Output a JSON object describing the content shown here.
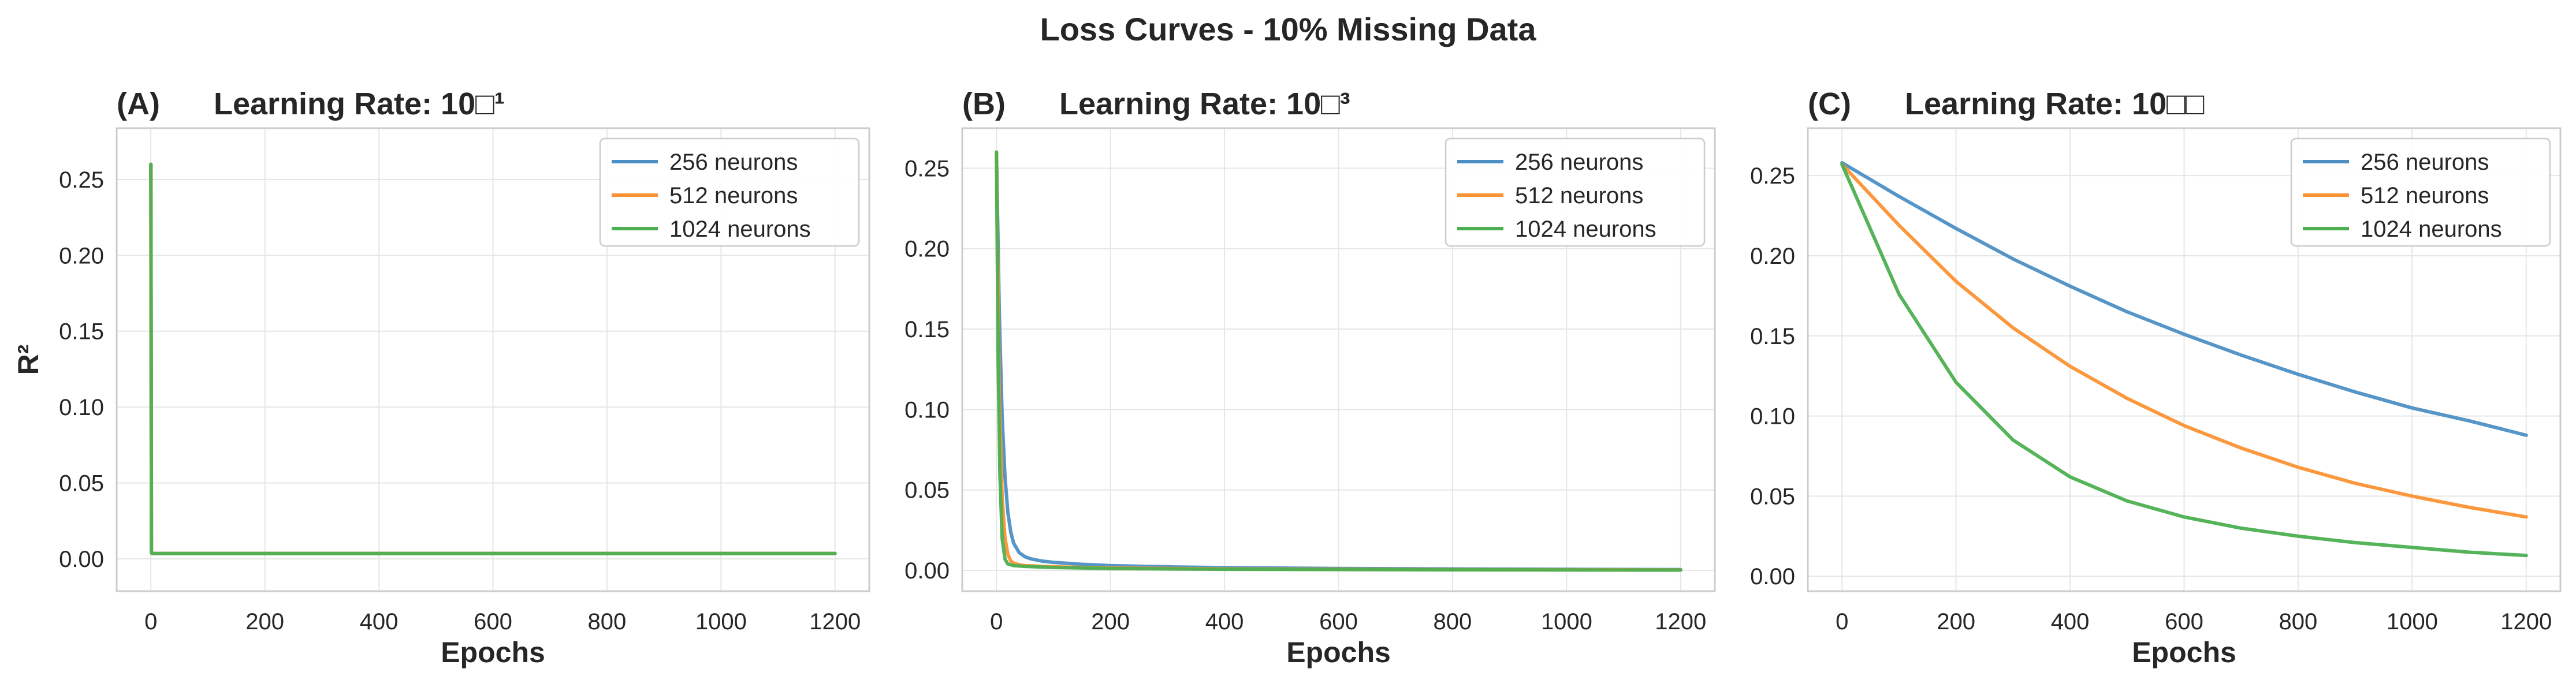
{
  "figure": {
    "title": "Loss Curves - 10% Missing Data"
  },
  "colors": {
    "series": [
      "#4c8fc4",
      "#fb9233",
      "#4caf50"
    ],
    "axes_edge": "#cccccc",
    "grid": "#e6e6e6",
    "text": "#262626"
  },
  "chart_data": [
    {
      "type": "line",
      "panel_label": "(A)",
      "title": "Learning Rate: 10□¹",
      "xlabel": "Epochs",
      "ylabel": "R²",
      "xlim": [
        -60,
        1260
      ],
      "ylim": [
        -0.0213,
        0.2838
      ],
      "xticks": [
        0,
        200,
        400,
        600,
        800,
        1000,
        1200
      ],
      "yticks": [
        0.0,
        0.05,
        0.1,
        0.15,
        0.2,
        0.25
      ],
      "ytick_labels": [
        "0.00",
        "0.05",
        "0.10",
        "0.15",
        "0.20",
        "0.25"
      ],
      "grid": true,
      "legend_loc": "upper right",
      "series": [
        {
          "name": "256 neurons",
          "x": [
            0,
            1,
            2,
            50,
            200,
            600,
            1200
          ],
          "y": [
            0.26,
            0.004,
            0.0035,
            0.0035,
            0.0035,
            0.0035,
            0.0035
          ]
        },
        {
          "name": "512 neurons",
          "x": [
            0,
            1,
            2,
            50,
            200,
            600,
            1200
          ],
          "y": [
            0.26,
            0.004,
            0.0035,
            0.0035,
            0.0035,
            0.0035,
            0.0035
          ]
        },
        {
          "name": "1024 neurons",
          "x": [
            0,
            1,
            2,
            50,
            200,
            600,
            1200
          ],
          "y": [
            0.26,
            0.004,
            0.0035,
            0.0035,
            0.0035,
            0.0035,
            0.0035
          ]
        }
      ]
    },
    {
      "type": "line",
      "panel_label": "(B)",
      "title": "Learning Rate: 10□³",
      "xlabel": "Epochs",
      "ylabel": "",
      "xlim": [
        -60,
        1260
      ],
      "ylim": [
        -0.0129,
        0.2749
      ],
      "xticks": [
        0,
        200,
        400,
        600,
        800,
        1000,
        1200
      ],
      "yticks": [
        0.0,
        0.05,
        0.1,
        0.15,
        0.2,
        0.25
      ],
      "ytick_labels": [
        "0.00",
        "0.05",
        "0.10",
        "0.15",
        "0.20",
        "0.25"
      ],
      "grid": true,
      "legend_loc": "upper right",
      "series": [
        {
          "name": "256 neurons",
          "x": [
            0,
            5,
            10,
            15,
            20,
            25,
            30,
            40,
            50,
            60,
            80,
            100,
            150,
            200,
            300,
            400,
            600,
            800,
            1000,
            1200
          ],
          "y": [
            0.26,
            0.16,
            0.095,
            0.058,
            0.036,
            0.024,
            0.017,
            0.011,
            0.0085,
            0.0072,
            0.0058,
            0.005,
            0.0038,
            0.003,
            0.0022,
            0.0017,
            0.0012,
            0.0009,
            0.0007,
            0.0005
          ]
        },
        {
          "name": "512 neurons",
          "x": [
            0,
            5,
            10,
            15,
            20,
            25,
            30,
            40,
            50,
            80,
            100,
            200,
            400,
            800,
            1200
          ],
          "y": [
            0.26,
            0.11,
            0.045,
            0.02,
            0.01,
            0.006,
            0.0045,
            0.0035,
            0.003,
            0.0025,
            0.0022,
            0.0015,
            0.0009,
            0.0005,
            0.0003
          ]
        },
        {
          "name": "1024 neurons",
          "x": [
            0,
            3,
            6,
            10,
            15,
            20,
            30,
            50,
            100,
            200,
            400,
            800,
            1200
          ],
          "y": [
            0.26,
            0.13,
            0.06,
            0.02,
            0.007,
            0.004,
            0.003,
            0.0025,
            0.0018,
            0.0012,
            0.0007,
            0.0004,
            0.0002
          ]
        }
      ]
    },
    {
      "type": "line",
      "panel_label": "(C)",
      "title": "Learning Rate: 10□□",
      "xlabel": "Epochs",
      "ylabel": "",
      "xlim": [
        -60,
        1260
      ],
      "ylim": [
        -0.0093,
        0.2796
      ],
      "xticks": [
        0,
        200,
        400,
        600,
        800,
        1000,
        1200
      ],
      "yticks": [
        0.0,
        0.05,
        0.1,
        0.15,
        0.2,
        0.25
      ],
      "ytick_labels": [
        "0.00",
        "0.05",
        "0.10",
        "0.15",
        "0.20",
        "0.25"
      ],
      "grid": true,
      "legend_loc": "upper right",
      "series": [
        {
          "name": "256 neurons",
          "x": [
            0,
            100,
            200,
            300,
            400,
            500,
            600,
            700,
            800,
            900,
            1000,
            1100,
            1200
          ],
          "y": [
            0.258,
            0.237,
            0.217,
            0.198,
            0.181,
            0.165,
            0.151,
            0.138,
            0.126,
            0.115,
            0.105,
            0.097,
            0.088
          ]
        },
        {
          "name": "512 neurons",
          "x": [
            0,
            100,
            200,
            300,
            400,
            500,
            600,
            700,
            800,
            900,
            1000,
            1100,
            1200
          ],
          "y": [
            0.257,
            0.219,
            0.184,
            0.155,
            0.131,
            0.111,
            0.094,
            0.08,
            0.068,
            0.058,
            0.05,
            0.043,
            0.037
          ]
        },
        {
          "name": "1024 neurons",
          "x": [
            0,
            100,
            200,
            300,
            400,
            500,
            600,
            700,
            800,
            900,
            1000,
            1100,
            1200
          ],
          "y": [
            0.257,
            0.176,
            0.121,
            0.085,
            0.062,
            0.047,
            0.037,
            0.03,
            0.025,
            0.021,
            0.018,
            0.015,
            0.013
          ]
        }
      ]
    }
  ]
}
